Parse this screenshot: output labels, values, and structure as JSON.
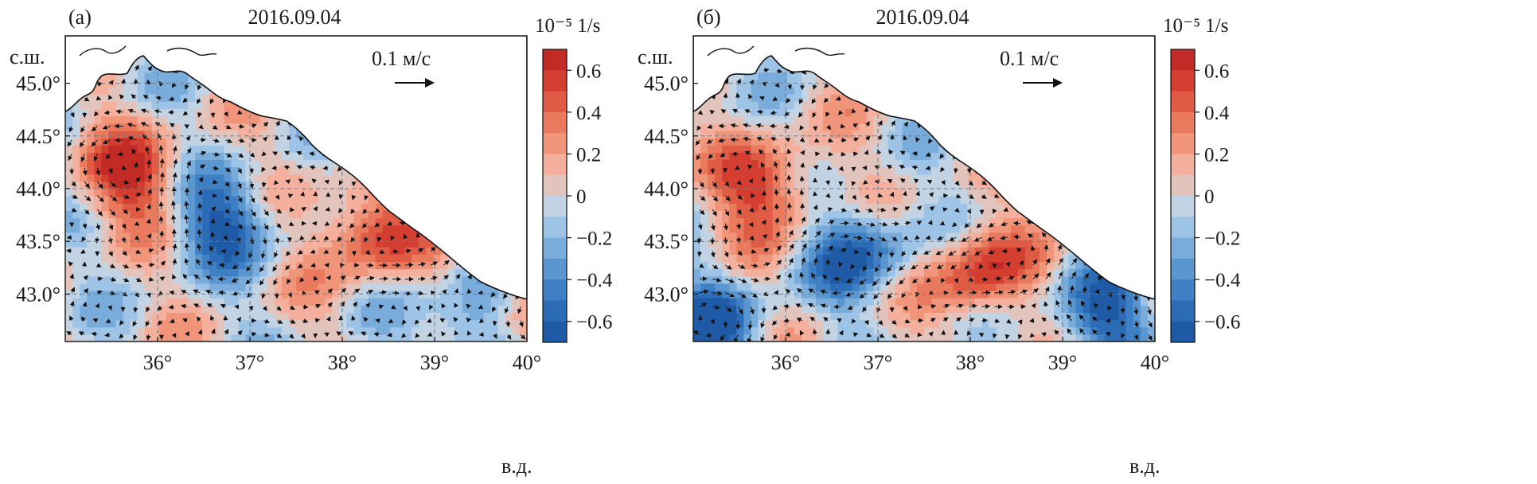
{
  "chart_data": [
    {
      "type": "heatmap",
      "panel_label": "(а)",
      "title": "2016.09.04",
      "xlabel": "в.д.",
      "ylabel": "с.ш.",
      "x_ticks": [
        "36°",
        "37°",
        "38°",
        "39°",
        "40°"
      ],
      "x_tick_values": [
        36,
        37,
        38,
        39,
        40
      ],
      "y_ticks": [
        "45.0°",
        "44.5°",
        "44.0°",
        "43.5°",
        "43.0°"
      ],
      "y_tick_values": [
        45.0,
        44.5,
        44.0,
        43.5,
        43.0
      ],
      "xlim": [
        35.0,
        40.0
      ],
      "ylim": [
        42.55,
        45.45
      ],
      "grid": true,
      "colorbar": {
        "title": "10⁻⁵ 1/s",
        "tick_labels": [
          "0.6",
          "0.4",
          "0.2",
          "0",
          "−0.2",
          "−0.4",
          "−0.6"
        ],
        "tick_values": [
          0.6,
          0.4,
          0.2,
          0,
          -0.2,
          -0.4,
          -0.6
        ],
        "range": [
          -0.7,
          0.7
        ]
      },
      "vector_scale_label": "0.1 м/с",
      "field": {
        "kind": "vorticity",
        "features": [
          {
            "lon": 35.7,
            "lat": 44.1,
            "sign": "positive",
            "note": "anticyclonic-scale eddy west"
          },
          {
            "lon": 36.7,
            "lat": 43.7,
            "sign": "negative",
            "note": "band"
          },
          {
            "lon": 38.3,
            "lat": 43.6,
            "sign": "positive",
            "note": "central"
          },
          {
            "lon": 39.5,
            "lat": 42.7,
            "sign": "negative",
            "note": "southeast core"
          },
          {
            "lon": 40.05,
            "lat": 42.7,
            "sign": "positive",
            "note": "southeast edge"
          }
        ]
      }
    },
    {
      "type": "heatmap",
      "panel_label": "(б)",
      "title": "2016.09.04",
      "xlabel": "в.д.",
      "ylabel": "с.ш.",
      "x_ticks": [
        "36°",
        "37°",
        "38°",
        "39°",
        "40°"
      ],
      "x_tick_values": [
        36,
        37,
        38,
        39,
        40
      ],
      "y_ticks": [
        "45.0°",
        "44.5°",
        "44.0°",
        "43.5°",
        "43.0°"
      ],
      "y_tick_values": [
        45.0,
        44.5,
        44.0,
        43.5,
        43.0
      ],
      "xlim": [
        35.0,
        40.0
      ],
      "ylim": [
        42.55,
        45.45
      ],
      "grid": true,
      "colorbar": {
        "title": "10⁻⁵ 1/s",
        "tick_labels": [
          "0.6",
          "0.4",
          "0.2",
          "0",
          "−0.2",
          "−0.4",
          "−0.6"
        ],
        "tick_values": [
          0.6,
          0.4,
          0.2,
          0,
          -0.2,
          -0.4,
          -0.6
        ],
        "range": [
          -0.7,
          0.7
        ]
      },
      "vector_scale_label": "0.1 м/с",
      "field": {
        "kind": "vorticity",
        "features": [
          {
            "lon": 35.8,
            "lat": 44.0,
            "sign": "positive",
            "note": "west"
          },
          {
            "lon": 36.8,
            "lat": 43.4,
            "sign": "negative",
            "note": "band"
          },
          {
            "lon": 38.1,
            "lat": 43.2,
            "sign": "positive",
            "note": "central"
          },
          {
            "lon": 39.4,
            "lat": 42.8,
            "sign": "negative",
            "note": "southeast core"
          },
          {
            "lon": 35.2,
            "lat": 42.7,
            "sign": "negative",
            "note": "southwest corner"
          }
        ]
      }
    }
  ]
}
